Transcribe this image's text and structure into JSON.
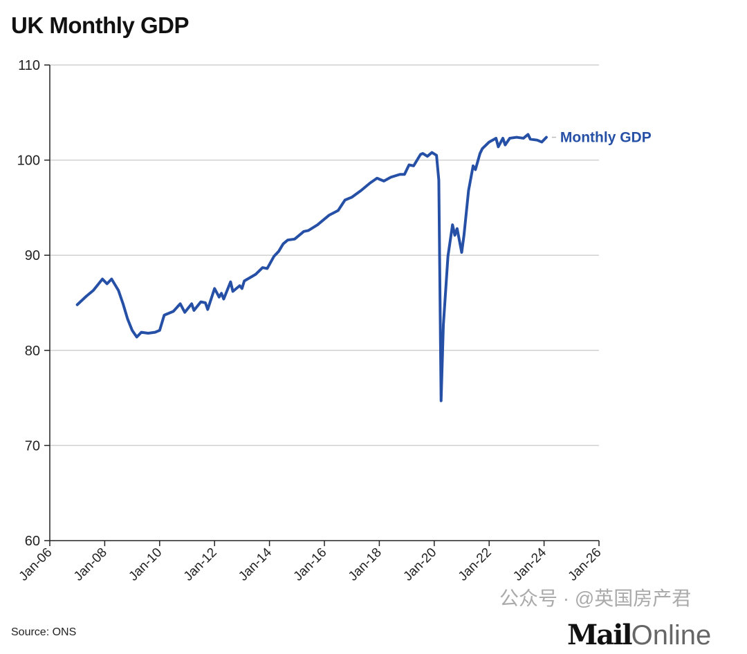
{
  "chart_data": {
    "type": "line",
    "title": "UK Monthly GDP",
    "xlabel": "",
    "ylabel": "",
    "ylim": [
      60,
      110
    ],
    "yticks": [
      "60",
      "70",
      "80",
      "90",
      "100",
      "110"
    ],
    "xlim": [
      "2006-01",
      "2026-01"
    ],
    "xticks": [
      "Jan-06",
      "Jan-08",
      "Jan-10",
      "Jan-12",
      "Jan-14",
      "Jan-16",
      "Jan-18",
      "Jan-20",
      "Jan-22",
      "Jan-24",
      "Jan-26"
    ],
    "grid": "horizontal",
    "series": [
      {
        "name": "Monthly GDP",
        "color": "#2650a6",
        "points": [
          [
            "2007-01",
            84.8
          ],
          [
            "2007-05",
            85.7
          ],
          [
            "2007-08",
            86.3
          ],
          [
            "2007-12",
            87.5
          ],
          [
            "2008-02",
            87.0
          ],
          [
            "2008-04",
            87.5
          ],
          [
            "2008-07",
            86.3
          ],
          [
            "2008-09",
            84.9
          ],
          [
            "2008-11",
            83.3
          ],
          [
            "2009-01",
            82.1
          ],
          [
            "2009-03",
            81.4
          ],
          [
            "2009-05",
            81.9
          ],
          [
            "2009-08",
            81.8
          ],
          [
            "2009-11",
            81.9
          ],
          [
            "2010-01",
            82.1
          ],
          [
            "2010-03",
            83.7
          ],
          [
            "2010-07",
            84.1
          ],
          [
            "2010-10",
            84.9
          ],
          [
            "2010-12",
            84.0
          ],
          [
            "2011-03",
            84.9
          ],
          [
            "2011-04",
            84.2
          ],
          [
            "2011-07",
            85.1
          ],
          [
            "2011-09",
            85.0
          ],
          [
            "2011-10",
            84.3
          ],
          [
            "2012-01",
            86.5
          ],
          [
            "2012-03",
            85.6
          ],
          [
            "2012-04",
            86.0
          ],
          [
            "2012-05",
            85.4
          ],
          [
            "2012-08",
            87.2
          ],
          [
            "2012-09",
            86.2
          ],
          [
            "2012-12",
            86.8
          ],
          [
            "2013-01",
            86.5
          ],
          [
            "2013-02",
            87.3
          ],
          [
            "2013-07",
            88.0
          ],
          [
            "2013-10",
            88.7
          ],
          [
            "2013-12",
            88.6
          ],
          [
            "2014-03",
            89.9
          ],
          [
            "2014-05",
            90.4
          ],
          [
            "2014-07",
            91.2
          ],
          [
            "2014-09",
            91.6
          ],
          [
            "2014-12",
            91.7
          ],
          [
            "2015-02",
            92.1
          ],
          [
            "2015-04",
            92.5
          ],
          [
            "2015-06",
            92.6
          ],
          [
            "2015-10",
            93.2
          ],
          [
            "2016-03",
            94.2
          ],
          [
            "2016-07",
            94.7
          ],
          [
            "2016-10",
            95.8
          ],
          [
            "2017-01",
            96.1
          ],
          [
            "2017-05",
            96.8
          ],
          [
            "2017-09",
            97.6
          ],
          [
            "2017-12",
            98.1
          ],
          [
            "2018-03",
            97.8
          ],
          [
            "2018-06",
            98.2
          ],
          [
            "2018-10",
            98.5
          ],
          [
            "2018-12",
            98.5
          ],
          [
            "2019-02",
            99.5
          ],
          [
            "2019-04",
            99.4
          ],
          [
            "2019-07",
            100.6
          ],
          [
            "2019-08",
            100.7
          ],
          [
            "2019-10",
            100.4
          ],
          [
            "2019-12",
            100.8
          ],
          [
            "2020-02",
            100.5
          ],
          [
            "2020-03",
            97.9
          ],
          [
            "2020-04",
            74.7
          ],
          [
            "2020-05",
            82.7
          ],
          [
            "2020-07",
            89.9
          ],
          [
            "2020-09",
            93.2
          ],
          [
            "2020-10",
            92.1
          ],
          [
            "2020-11",
            92.8
          ],
          [
            "2021-01",
            90.3
          ],
          [
            "2021-02",
            92.1
          ],
          [
            "2021-04",
            96.8
          ],
          [
            "2021-06",
            99.4
          ],
          [
            "2021-07",
            99.0
          ],
          [
            "2021-09",
            100.7
          ],
          [
            "2021-10",
            101.2
          ],
          [
            "2022-01",
            101.9
          ],
          [
            "2022-04",
            102.3
          ],
          [
            "2022-05",
            101.4
          ],
          [
            "2022-07",
            102.3
          ],
          [
            "2022-08",
            101.6
          ],
          [
            "2022-10",
            102.3
          ],
          [
            "2023-01",
            102.4
          ],
          [
            "2023-04",
            102.3
          ],
          [
            "2023-06",
            102.7
          ],
          [
            "2023-07",
            102.2
          ],
          [
            "2023-10",
            102.1
          ],
          [
            "2023-12",
            101.9
          ],
          [
            "2024-02",
            102.4
          ]
        ]
      }
    ]
  },
  "source": "Source: ONS",
  "watermark": "公众号 · @英国房产君",
  "logo": "MailOnline"
}
